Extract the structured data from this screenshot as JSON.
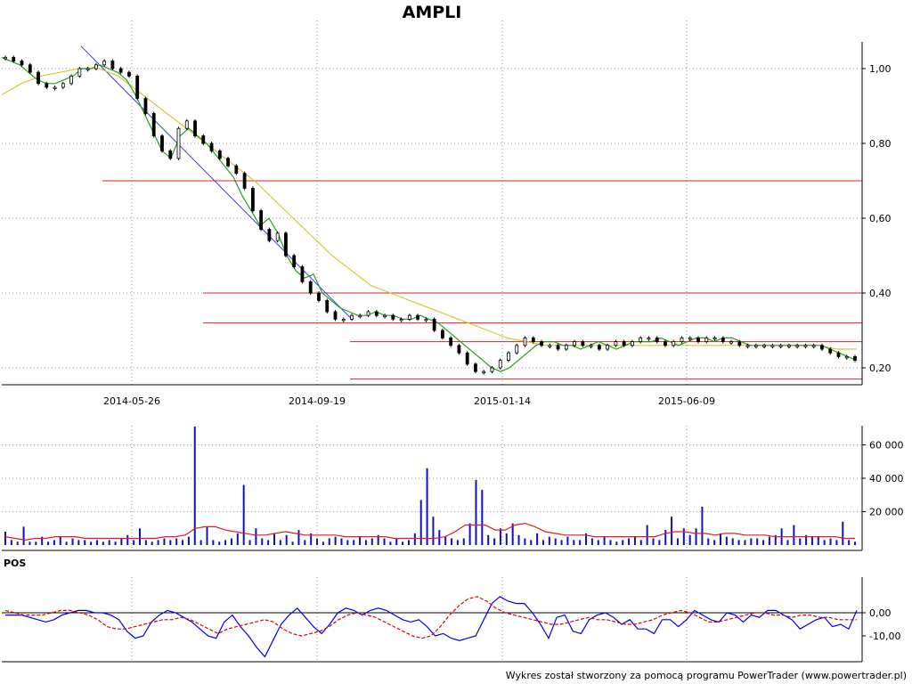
{
  "chart_data": [
    {
      "type": "candlestick",
      "title": "AMPLI",
      "x_ticks": [
        "2014-05-26",
        "2014-09-19",
        "2015-01-14",
        "2015-06-09"
      ],
      "y_ticks": [
        "0,20",
        "0,40",
        "0,60",
        "0,80",
        "1,00"
      ],
      "ylim": [
        0.17,
        1.08
      ],
      "grid": true,
      "close_series": [
        1.03,
        1.02,
        1.01,
        0.99,
        0.96,
        0.95,
        0.95,
        0.96,
        0.98,
        1.0,
        1.0,
        1.01,
        1.02,
        1.0,
        0.99,
        0.98,
        0.92,
        0.88,
        0.82,
        0.78,
        0.76,
        0.84,
        0.86,
        0.82,
        0.8,
        0.78,
        0.76,
        0.74,
        0.72,
        0.68,
        0.62,
        0.57,
        0.54,
        0.56,
        0.5,
        0.47,
        0.43,
        0.4,
        0.38,
        0.35,
        0.33,
        0.33,
        0.34,
        0.34,
        0.35,
        0.34,
        0.34,
        0.33,
        0.33,
        0.34,
        0.33,
        0.33,
        0.3,
        0.28,
        0.26,
        0.24,
        0.21,
        0.19,
        0.19,
        0.2,
        0.22,
        0.24,
        0.26,
        0.28,
        0.27,
        0.26,
        0.26,
        0.25,
        0.26,
        0.27,
        0.26,
        0.26,
        0.25,
        0.26,
        0.27,
        0.26,
        0.27,
        0.28,
        0.28,
        0.27,
        0.26,
        0.27,
        0.28,
        0.28,
        0.27,
        0.28,
        0.28,
        0.27,
        0.27,
        0.26,
        0.26,
        0.26,
        0.26,
        0.26,
        0.26,
        0.26,
        0.26,
        0.26,
        0.26,
        0.25,
        0.24,
        0.23,
        0.23,
        0.22
      ],
      "sma_short": [
        1.03,
        1.02,
        1.01,
        0.99,
        0.97,
        0.96,
        0.96,
        0.97,
        0.98,
        1.0,
        1.0,
        1.01,
        1.0,
        0.99,
        0.97,
        0.93,
        0.88,
        0.83,
        0.78,
        0.76,
        0.82,
        0.84,
        0.82,
        0.8,
        0.77,
        0.74,
        0.71,
        0.66,
        0.62,
        0.58,
        0.6,
        0.56,
        0.5,
        0.46,
        0.44,
        0.45,
        0.4,
        0.38,
        0.36,
        0.35,
        0.34,
        0.34,
        0.35,
        0.34,
        0.34,
        0.33,
        0.33,
        0.34,
        0.33,
        0.32,
        0.3,
        0.28,
        0.26,
        0.24,
        0.22,
        0.2,
        0.19,
        0.2,
        0.22,
        0.24,
        0.26,
        0.27,
        0.27,
        0.26,
        0.26,
        0.25,
        0.26,
        0.27,
        0.26,
        0.25,
        0.26,
        0.27,
        0.27,
        0.27,
        0.28,
        0.27,
        0.26,
        0.27,
        0.28,
        0.28,
        0.27,
        0.28,
        0.28,
        0.27,
        0.26,
        0.26,
        0.26,
        0.26,
        0.26,
        0.26,
        0.26,
        0.26,
        0.26,
        0.25,
        0.24,
        0.23,
        0.22
      ],
      "sma_long": [
        0.93,
        0.96,
        0.98,
        0.99,
        1.0,
        1.0,
        0.98,
        0.94,
        0.9,
        0.86,
        0.82,
        0.78,
        0.74,
        0.7,
        0.65,
        0.6,
        0.55,
        0.5,
        0.46,
        0.42,
        0.4,
        0.38,
        0.36,
        0.34,
        0.32,
        0.3,
        0.28,
        0.27,
        0.26,
        0.26,
        0.26,
        0.26,
        0.26,
        0.26,
        0.26,
        0.26,
        0.26,
        0.26,
        0.26,
        0.26,
        0.26,
        0.26,
        0.26,
        0.25,
        0.25
      ],
      "support_lines": [
        0.7,
        0.4,
        0.32,
        0.27,
        0.17
      ],
      "trend_line": [
        [
          0,
          1.06
        ],
        [
          1,
          0.33
        ]
      ]
    },
    {
      "type": "bar",
      "y_ticks": [
        "20 000",
        "40 000",
        "60 000"
      ],
      "ylim": [
        0,
        75000
      ],
      "values": [
        8000,
        3000,
        2000,
        11000,
        2000,
        2000,
        5000,
        2000,
        3000,
        5000,
        2000,
        4000,
        3000,
        3000,
        2000,
        3000,
        2000,
        3000,
        2000,
        4000,
        6000,
        3000,
        10000,
        3000,
        2000,
        3000,
        4000,
        3000,
        4000,
        3000,
        5000,
        71000,
        3000,
        11000,
        3000,
        2000,
        3000,
        4000,
        7000,
        36000,
        3000,
        10000,
        4000,
        3000,
        7000,
        3000,
        6000,
        2000,
        9000,
        3000,
        7000,
        4000,
        2000,
        4000,
        5000,
        4000,
        3000,
        3000,
        5000,
        3000,
        4000,
        6000,
        4000,
        2000,
        4000,
        2000,
        3000,
        7000,
        27000,
        46000,
        17000,
        9000,
        5000,
        4000,
        3000,
        4000,
        13000,
        39000,
        33000,
        6000,
        4000,
        10000,
        7000,
        13000,
        6000,
        4000,
        3000,
        7000,
        3000,
        5000,
        4000,
        3000,
        5000,
        3000,
        3000,
        7000,
        4000,
        3000,
        5000,
        3000,
        2000,
        3000,
        4000,
        5000,
        3000,
        12000,
        4000,
        3000,
        9000,
        17000,
        4000,
        10000,
        6000,
        10000,
        23000,
        4000,
        3000,
        7000,
        5000,
        4000,
        3000,
        3000,
        4000,
        4000,
        3000,
        5000,
        6000,
        10000,
        3000,
        12000,
        4000,
        6000,
        5000,
        5000,
        3000,
        4000,
        3000,
        14000,
        3000,
        2000
      ],
      "average": [
        5000,
        4000,
        3000,
        4000,
        4000,
        5000,
        5000,
        5000,
        4000,
        4000,
        4000,
        4000,
        4000,
        4000,
        4000,
        4000,
        5000,
        5000,
        6000,
        10000,
        11000,
        11000,
        9000,
        8000,
        7000,
        6000,
        6000,
        7000,
        8000,
        7000,
        6000,
        6000,
        6000,
        6000,
        5000,
        5000,
        5000,
        5000,
        5000,
        4000,
        4000,
        4000,
        4000,
        4000,
        5000,
        8000,
        12000,
        12000,
        12000,
        9000,
        9000,
        12000,
        13000,
        11000,
        8000,
        7000,
        6000,
        6000,
        6000,
        5000,
        5000,
        5000,
        5000,
        5000,
        5000,
        5000,
        7000,
        8000,
        8000,
        7000,
        7000,
        6000,
        7000,
        7000,
        6000,
        6000,
        6000,
        5000,
        5000,
        5000,
        5000,
        5000,
        5000,
        5000,
        4000,
        4000
      ]
    },
    {
      "type": "line",
      "title": "POS",
      "y_ticks": [
        "0,00",
        "-10,00"
      ],
      "ylim": [
        -19,
        10
      ],
      "series": [
        {
          "color": "#0000ee",
          "values": [
            -1,
            -1,
            -1,
            -2,
            -3,
            -4,
            -3,
            -1,
            0,
            1,
            1,
            0,
            0,
            -1,
            -3,
            -8,
            -11,
            -10,
            -4,
            -1,
            1,
            0,
            -2,
            -4,
            -7,
            -10,
            -11,
            -4,
            -1,
            -6,
            -10,
            -15,
            -19,
            -12,
            -5,
            -1,
            2,
            -2,
            -6,
            -9,
            -5,
            0,
            2,
            1,
            -1,
            1,
            2,
            1,
            -1,
            -3,
            -4,
            -3,
            -6,
            -10,
            -9,
            -11,
            -12,
            -11,
            -10,
            -3,
            4,
            7,
            5,
            4,
            4,
            0,
            -5,
            -11,
            -2,
            -1,
            -8,
            -9,
            -3,
            -1,
            0,
            -2,
            -5,
            -3,
            -7,
            -7,
            -9,
            -3,
            -3,
            -6,
            -3,
            1,
            -1,
            -3,
            -4,
            0,
            -1,
            -4,
            -1,
            -2,
            1,
            1,
            -1,
            -3,
            -7,
            -5,
            -3,
            -2,
            -6,
            -5,
            -7,
            1
          ]
        },
        {
          "color": "#dd0000",
          "values": [
            1,
            0,
            -1,
            -1,
            -1,
            0,
            1,
            1,
            0,
            -1,
            -3,
            -6,
            -7,
            -7,
            -6,
            -5,
            -4,
            -3,
            -3,
            -2,
            -3,
            -5,
            -7,
            -9,
            -7,
            -6,
            -5,
            -4,
            -3,
            -4,
            -7,
            -9,
            -10,
            -9,
            -8,
            -6,
            -3,
            -1,
            0,
            -1,
            -2,
            -4,
            -6,
            -8,
            -10,
            -11,
            -10,
            -6,
            -1,
            3,
            6,
            7,
            5,
            2,
            0,
            -1,
            -2,
            -3,
            -4,
            -5,
            -5,
            -4,
            -3,
            -2,
            -3,
            -3,
            -4,
            -5,
            -5,
            -4,
            -3,
            -1,
            0,
            1,
            0,
            -2,
            -4,
            -4,
            -3,
            -2,
            -1,
            0,
            0,
            -1,
            -1,
            -2,
            -1,
            -1,
            -2,
            -2,
            -3,
            -3,
            -3
          ]
        }
      ]
    }
  ],
  "footer_text": "Wykres został stworzony za pomocą programu PowerTrader (www.powertrader.pl)"
}
